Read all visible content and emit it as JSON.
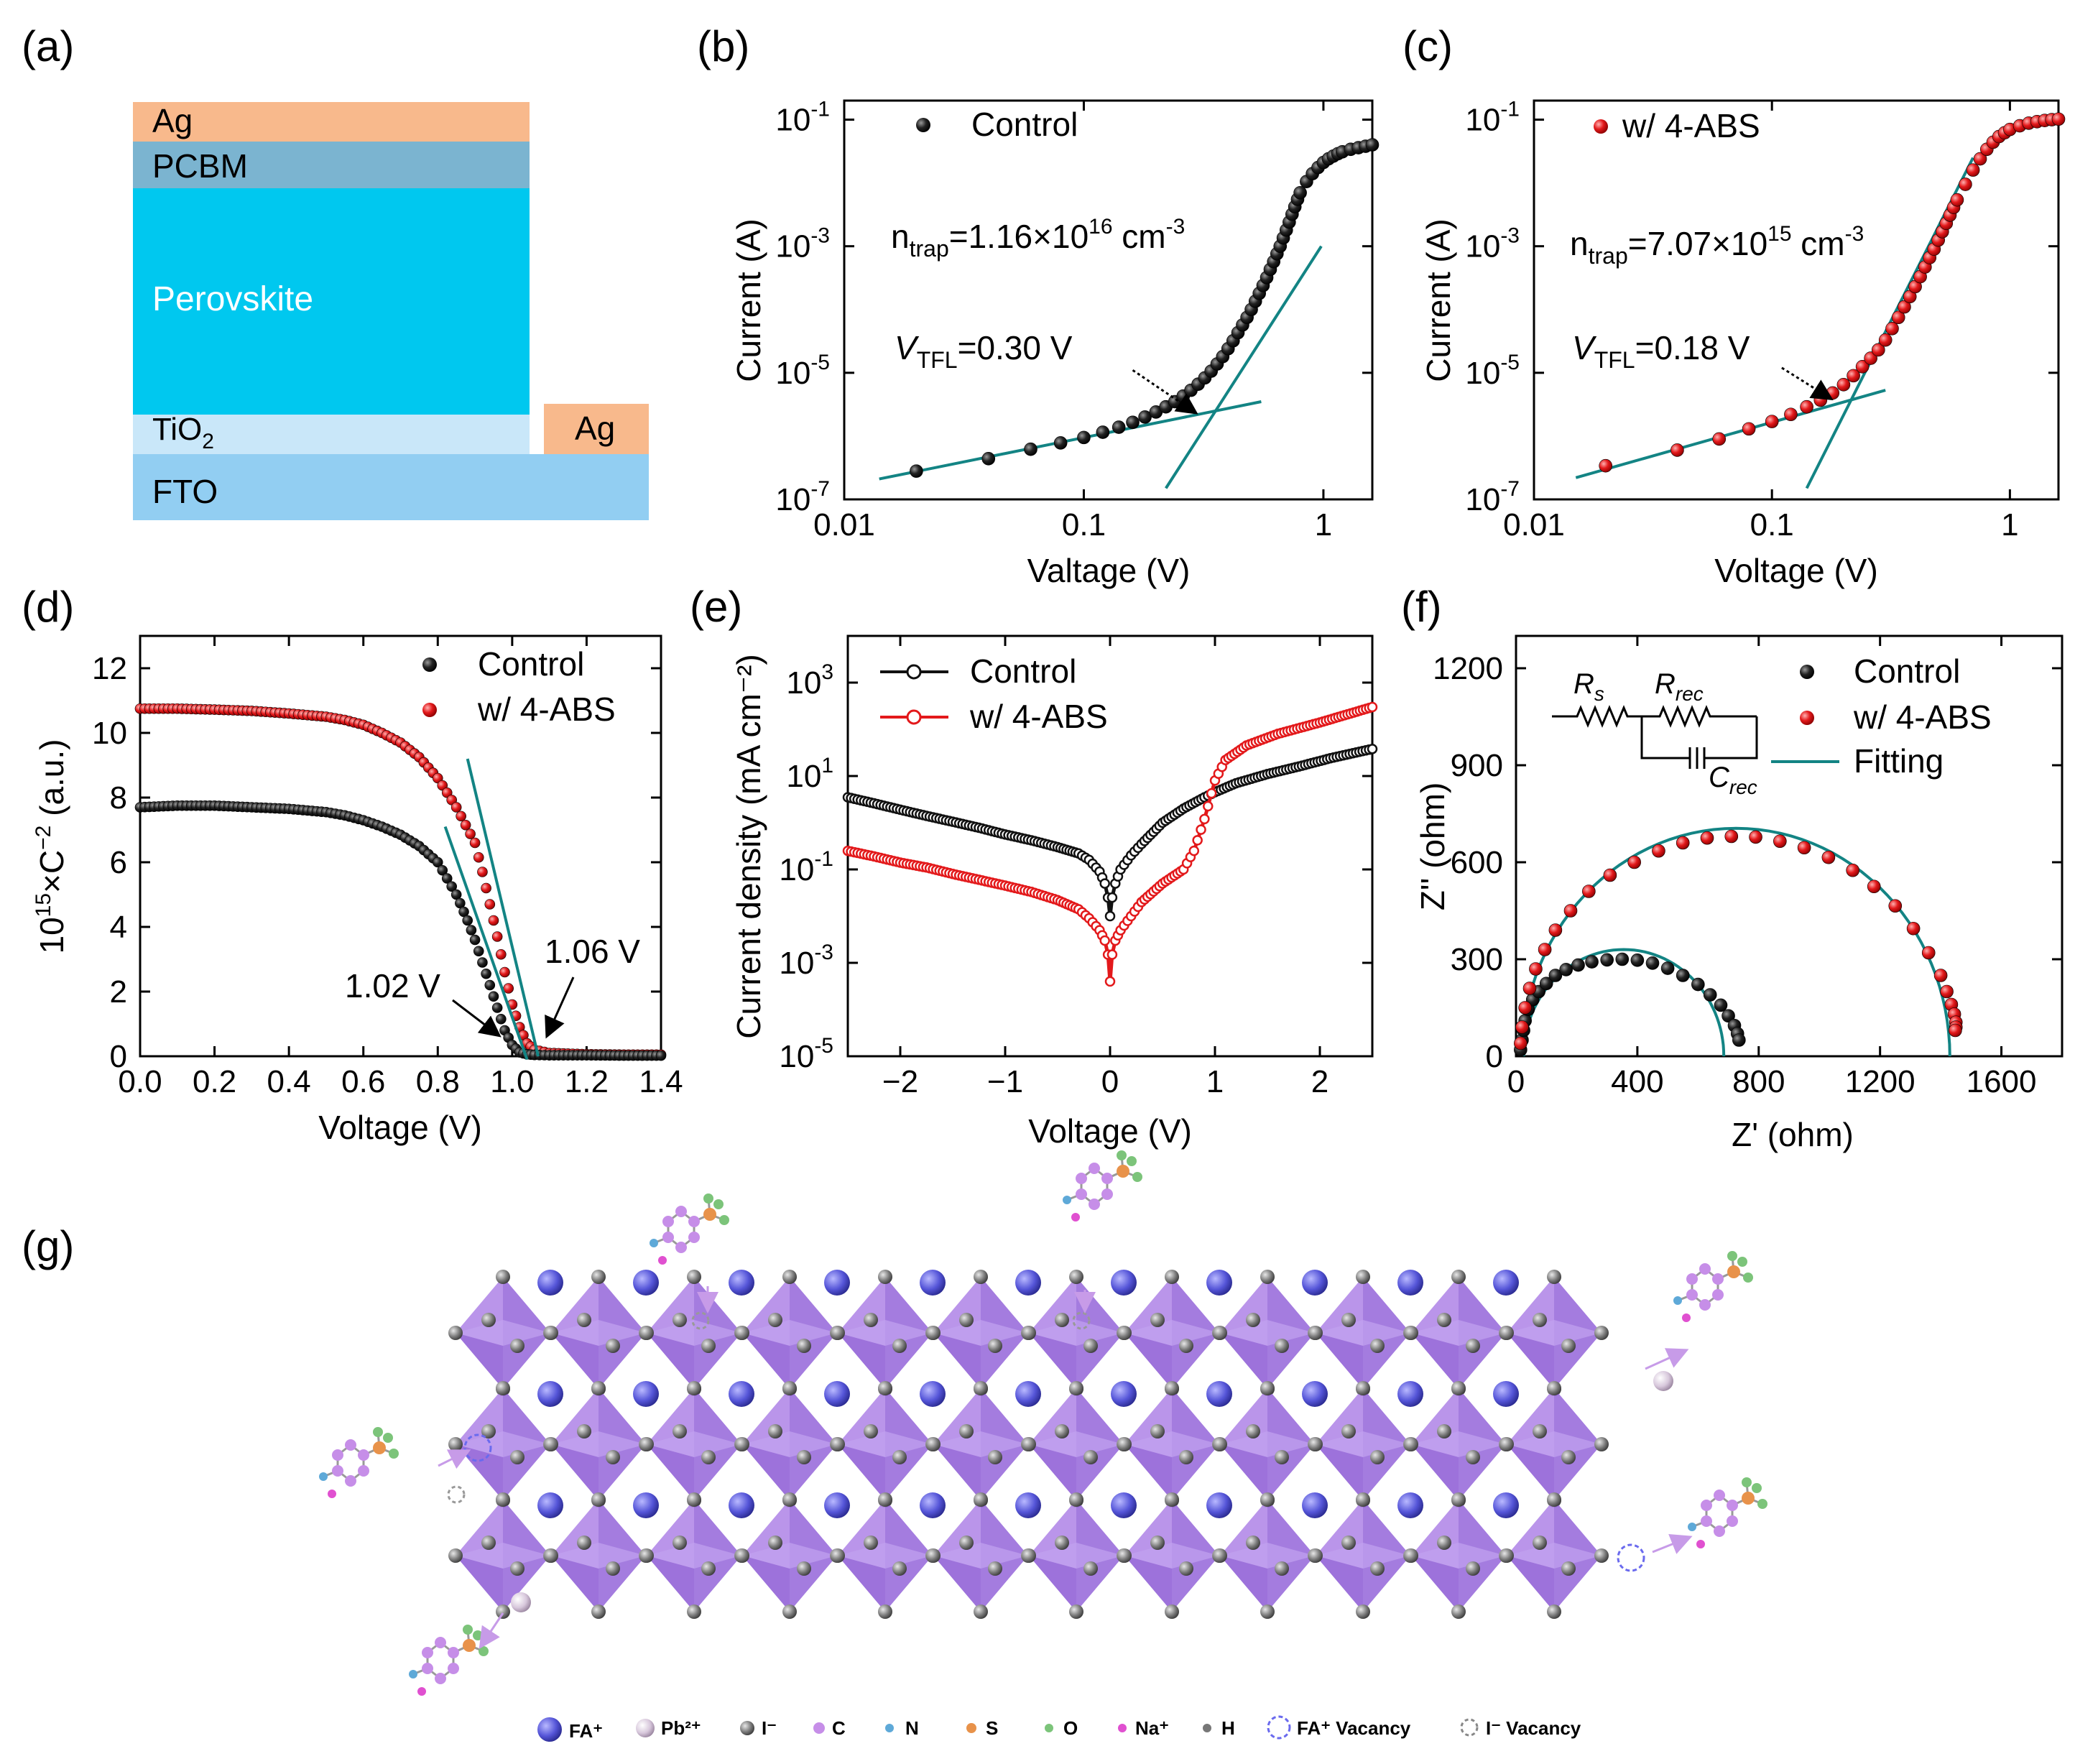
{
  "panel_labels": [
    "(a)",
    "(b)",
    "(c)",
    "(d)",
    "(e)",
    "(f)",
    "(g)"
  ],
  "colors": {
    "control": "#111111",
    "abs": "#e3191b",
    "fit": "#138484",
    "ag": "#f8b98c",
    "pcbm": "#7bb4d0",
    "perovskite": "#00c8ef",
    "tio2": "#c9e7f9",
    "fto": "#92cef2",
    "octahedron": "#9d6ee0",
    "fa": "#5b5bd6"
  },
  "device_stack": {
    "layers": [
      {
        "name": "Ag",
        "sub": ""
      },
      {
        "name": "PCBM",
        "sub": ""
      },
      {
        "name": "Perovskite",
        "sub": ""
      },
      {
        "name": "TiO",
        "sub": "2"
      },
      {
        "name": "FTO",
        "sub": ""
      }
    ],
    "side_electrode": "Ag"
  },
  "chart_data": [
    {
      "panel": "b",
      "type": "scatter",
      "xscale": "log",
      "yscale": "log",
      "xlabel": "Valtage (V)",
      "ylabel": "Current (A)",
      "xlim": [
        0.01,
        1.6
      ],
      "ylim": [
        1e-07,
        0.2
      ],
      "xtick_labels": [
        "0.01",
        "0.1",
        "1"
      ],
      "ytick_labels": [
        {
          "base": "10",
          "exp": "-7"
        },
        {
          "base": "10",
          "exp": "-5"
        },
        {
          "base": "10",
          "exp": "-3"
        },
        {
          "base": "10",
          "exp": "-1"
        }
      ],
      "legend": [
        "Control"
      ],
      "annotation_ntrap": {
        "main": "n",
        "sub": "trap",
        "value": "=1.16×10",
        "exp": "16",
        "unit": " cm",
        "unit_exp": "-3"
      },
      "annotation_vtfl": {
        "main": "V",
        "sub": "TFL",
        "value": "=0.30 V"
      },
      "series": [
        {
          "name": "Control",
          "x": [
            0.02,
            0.04,
            0.06,
            0.08,
            0.1,
            0.12,
            0.14,
            0.16,
            0.18,
            0.2,
            0.22,
            0.24,
            0.26,
            0.28,
            0.3,
            0.32,
            0.34,
            0.36,
            0.38,
            0.4,
            0.42,
            0.44,
            0.46,
            0.48,
            0.5,
            0.52,
            0.54,
            0.56,
            0.58,
            0.6,
            0.62,
            0.64,
            0.66,
            0.68,
            0.7,
            0.72,
            0.74,
            0.76,
            0.78,
            0.8,
            0.85,
            0.9,
            0.95,
            1.0,
            1.05,
            1.1,
            1.15,
            1.2,
            1.3,
            1.4,
            1.5,
            1.6
          ],
          "y": [
            2.8e-07,
            4.4e-07,
            6.2e-07,
            7.8e-07,
            9.5e-07,
            1.15e-06,
            1.38e-06,
            1.65e-06,
            2e-06,
            2.4e-06,
            2.9e-06,
            3.5e-06,
            4.3e-06,
            5.3e-06,
            6.6e-06,
            8.3e-06,
            1.06e-05,
            1.38e-05,
            1.8e-05,
            2.4e-05,
            3.2e-05,
            4.3e-05,
            5.7e-05,
            7.5e-05,
            0.0001,
            0.000135,
            0.00018,
            0.00024,
            0.00032,
            0.00043,
            0.00057,
            0.00076,
            0.001,
            0.00135,
            0.0018,
            0.0024,
            0.0032,
            0.0042,
            0.0055,
            0.007,
            0.0105,
            0.014,
            0.0175,
            0.021,
            0.024,
            0.0265,
            0.029,
            0.031,
            0.034,
            0.036,
            0.038,
            0.04
          ]
        }
      ],
      "fit_lines": [
        {
          "x": [
            0.014,
            0.55
          ],
          "y": [
            2.1e-07,
            3.5e-06
          ]
        },
        {
          "x": [
            0.22,
            0.98
          ],
          "y": [
            1.5e-07,
            0.001
          ]
        }
      ],
      "arrow": {
        "x": [
          0.16,
          0.29
        ],
        "y": [
          1.1e-05,
          2.4e-06
        ]
      }
    },
    {
      "panel": "c",
      "type": "scatter",
      "xscale": "log",
      "yscale": "log",
      "xlabel": "Voltage (V)",
      "ylabel": "Current (A)",
      "xlim": [
        0.01,
        1.6
      ],
      "ylim": [
        1e-07,
        0.2
      ],
      "xtick_labels": [
        "0.01",
        "0.1",
        "1"
      ],
      "ytick_labels": [
        {
          "base": "10",
          "exp": "-7"
        },
        {
          "base": "10",
          "exp": "-5"
        },
        {
          "base": "10",
          "exp": "-3"
        },
        {
          "base": "10",
          "exp": "-1"
        }
      ],
      "legend": [
        "w/ 4-ABS"
      ],
      "annotation_ntrap": {
        "main": "n",
        "sub": "trap",
        "value": "=7.07×10",
        "exp": "15",
        "unit": " cm",
        "unit_exp": "-3"
      },
      "annotation_vtfl": {
        "main": "V",
        "sub": "TFL",
        "value": "=0.18 V"
      },
      "series": [
        {
          "name": "w/ 4-ABS",
          "x": [
            0.02,
            0.04,
            0.06,
            0.08,
            0.1,
            0.12,
            0.14,
            0.16,
            0.18,
            0.2,
            0.22,
            0.24,
            0.26,
            0.28,
            0.3,
            0.32,
            0.34,
            0.36,
            0.38,
            0.4,
            0.42,
            0.44,
            0.46,
            0.48,
            0.5,
            0.52,
            0.54,
            0.56,
            0.58,
            0.6,
            0.65,
            0.7,
            0.75,
            0.8,
            0.85,
            0.9,
            0.95,
            1.0,
            1.1,
            1.2,
            1.3,
            1.4,
            1.5,
            1.6
          ],
          "y": [
            3.4e-07,
            6e-07,
            9e-07,
            1.3e-06,
            1.7e-06,
            2.2e-06,
            2.9e-06,
            3.7e-06,
            4.8e-06,
            6.5e-06,
            9e-06,
            1.25e-05,
            1.7e-05,
            2.3e-05,
            3.3e-05,
            5e-05,
            7.5e-05,
            0.00011,
            0.00016,
            0.00023,
            0.00033,
            0.00047,
            0.00066,
            0.0009,
            0.00125,
            0.0017,
            0.0023,
            0.0031,
            0.0041,
            0.0054,
            0.0095,
            0.016,
            0.024,
            0.034,
            0.044,
            0.054,
            0.062,
            0.07,
            0.08,
            0.088,
            0.093,
            0.097,
            0.1,
            0.102
          ]
        }
      ],
      "fit_lines": [
        {
          "x": [
            0.015,
            0.3
          ],
          "y": [
            2.2e-07,
            5.3e-06
          ]
        },
        {
          "x": [
            0.14,
            0.7
          ],
          "y": [
            1.5e-07,
            0.025
          ]
        }
      ],
      "arrow": {
        "x": [
          0.11,
          0.175
        ],
        "y": [
          1.2e-05,
          4e-06
        ]
      }
    },
    {
      "panel": "d",
      "type": "scatter",
      "xlabel": "Voltage (V)",
      "ylabel": {
        "pre": "10",
        "exp": "15",
        "mid": "×C",
        "exp2": "−2",
        "post": " (a.u.)"
      },
      "xlim": [
        0.0,
        1.4
      ],
      "ylim": [
        0,
        13
      ],
      "xticks": [
        0.0,
        0.2,
        0.4,
        0.6,
        0.8,
        1.0,
        1.2,
        1.4
      ],
      "xtick_labels": [
        "0.0",
        "0.2",
        "0.4",
        "0.6",
        "0.8",
        "1.0",
        "1.2",
        "1.4"
      ],
      "yticks": [
        0,
        2,
        4,
        6,
        8,
        10,
        12
      ],
      "ytick_labels": [
        "0",
        "2",
        "4",
        "6",
        "8",
        "10",
        "12"
      ],
      "legend": [
        "Control",
        "w/ 4-ABS"
      ],
      "annotations": [
        "1.02 V",
        "1.06 V"
      ],
      "series": [
        {
          "name": "Control",
          "x": [
            0.0,
            0.1,
            0.2,
            0.3,
            0.4,
            0.5,
            0.55,
            0.6,
            0.65,
            0.7,
            0.75,
            0.8,
            0.85,
            0.88,
            0.9,
            0.92,
            0.94,
            0.96,
            0.98,
            1.0,
            1.02,
            1.04,
            1.06,
            1.1,
            1.2,
            1.3,
            1.4
          ],
          "y": [
            7.7,
            7.75,
            7.75,
            7.7,
            7.65,
            7.55,
            7.45,
            7.3,
            7.1,
            6.85,
            6.5,
            6.0,
            5.0,
            4.2,
            3.6,
            2.9,
            2.2,
            1.5,
            0.8,
            0.35,
            0.12,
            0.06,
            0.04,
            0.03,
            0.03,
            0.02,
            0.02
          ]
        },
        {
          "name": "w/ 4-ABS",
          "x": [
            0.0,
            0.1,
            0.2,
            0.3,
            0.4,
            0.5,
            0.55,
            0.6,
            0.65,
            0.7,
            0.75,
            0.8,
            0.85,
            0.9,
            0.92,
            0.94,
            0.96,
            0.98,
            1.0,
            1.02,
            1.04,
            1.06,
            1.1,
            1.2,
            1.3,
            1.4
          ],
          "y": [
            10.75,
            10.75,
            10.72,
            10.68,
            10.6,
            10.5,
            10.4,
            10.25,
            10.0,
            9.7,
            9.25,
            8.6,
            7.7,
            6.6,
            5.7,
            4.7,
            3.7,
            2.6,
            1.6,
            0.9,
            0.4,
            0.2,
            0.1,
            0.06,
            0.05,
            0.05
          ]
        }
      ],
      "fit_lines": [
        {
          "x": [
            0.82,
            1.04
          ],
          "y": [
            7.1,
            -0.1
          ]
        },
        {
          "x": [
            0.88,
            1.07
          ],
          "y": [
            9.2,
            0.0
          ]
        }
      ]
    },
    {
      "panel": "e",
      "type": "line",
      "yscale": "log",
      "xlabel": "Voltage (V)",
      "ylabel": "Current density (mA cm⁻²)",
      "xlim": [
        -2.5,
        2.5
      ],
      "ylim": [
        1e-05,
        10000.0
      ],
      "xticks": [
        -2,
        -1,
        0,
        1,
        2
      ],
      "xtick_labels": [
        "−2",
        "−1",
        "0",
        "1",
        "2"
      ],
      "ytick_labels": [
        {
          "base": "10",
          "exp": "-5"
        },
        {
          "base": "10",
          "exp": "-3"
        },
        {
          "base": "10",
          "exp": "-1"
        },
        {
          "base": "10",
          "exp": "1"
        },
        {
          "base": "10",
          "exp": "3"
        }
      ],
      "legend": [
        "Control",
        "w/ 4-ABS"
      ],
      "series": [
        {
          "name": "Control",
          "x": [
            -2.5,
            -2.25,
            -2.0,
            -1.75,
            -1.5,
            -1.25,
            -1.0,
            -0.75,
            -0.5,
            -0.3,
            -0.2,
            -0.1,
            -0.05,
            -0.02,
            0.0,
            0.02,
            0.05,
            0.1,
            0.2,
            0.3,
            0.5,
            0.7,
            0.9,
            1.0,
            1.2,
            1.5,
            1.8,
            2.1,
            2.5
          ],
          "y": [
            3.5,
            2.6,
            1.9,
            1.4,
            1.05,
            0.78,
            0.56,
            0.42,
            0.3,
            0.22,
            0.16,
            0.09,
            0.05,
            0.025,
            0.01,
            0.025,
            0.05,
            0.1,
            0.2,
            0.35,
            1.0,
            2.0,
            3.5,
            4.5,
            7.0,
            11.0,
            16.0,
            24.0,
            38.0
          ]
        },
        {
          "name": "w/ 4-ABS",
          "x": [
            -2.5,
            -2.25,
            -2.0,
            -1.75,
            -1.5,
            -1.25,
            -1.0,
            -0.75,
            -0.5,
            -0.3,
            -0.2,
            -0.1,
            -0.05,
            -0.02,
            0.0,
            0.02,
            0.05,
            0.1,
            0.2,
            0.3,
            0.5,
            0.7,
            0.8,
            0.9,
            1.0,
            1.1,
            1.3,
            1.6,
            2.0,
            2.5
          ],
          "y": [
            0.25,
            0.19,
            0.14,
            0.11,
            0.08,
            0.06,
            0.045,
            0.033,
            0.022,
            0.014,
            0.009,
            0.005,
            0.003,
            0.0015,
            0.0004,
            0.0015,
            0.003,
            0.005,
            0.01,
            0.02,
            0.05,
            0.1,
            0.25,
            1.2,
            8.0,
            22.0,
            45.0,
            80.0,
            140.0,
            300.0
          ]
        }
      ]
    },
    {
      "panel": "f",
      "type": "scatter",
      "xlabel": "Z' (ohm)",
      "ylabel": "Z'' (ohm)",
      "xlim": [
        0,
        1800
      ],
      "ylim": [
        0,
        1300
      ],
      "xticks": [
        0,
        400,
        800,
        1200,
        1600
      ],
      "xtick_labels": [
        "0",
        "400",
        "800",
        "1200",
        "1600"
      ],
      "yticks": [
        0,
        300,
        600,
        900,
        1200
      ],
      "ytick_labels": [
        "0",
        "300",
        "600",
        "900",
        "1200"
      ],
      "legend": [
        "Control",
        "w/ 4-ABS",
        "Fitting"
      ],
      "circuit_labels": {
        "rs": "R",
        "rs_sub": "s",
        "rrec": "R",
        "rrec_sub": "rec",
        "crec": "C",
        "crec_sub": "rec"
      },
      "series": [
        {
          "name": "Control",
          "x": [
            15,
            20,
            25,
            30,
            40,
            55,
            75,
            100,
            130,
            165,
            205,
            250,
            300,
            350,
            400,
            450,
            500,
            550,
            600,
            640,
            675,
            700,
            720,
            730,
            735
          ],
          "y": [
            20,
            50,
            80,
            110,
            145,
            175,
            200,
            225,
            250,
            268,
            282,
            292,
            298,
            300,
            297,
            288,
            272,
            250,
            222,
            190,
            158,
            125,
            95,
            70,
            50
          ]
        },
        {
          "name": "w/ 4-ABS",
          "x": [
            15,
            20,
            30,
            45,
            65,
            95,
            130,
            180,
            240,
            310,
            390,
            470,
            550,
            630,
            710,
            790,
            870,
            950,
            1030,
            1110,
            1180,
            1250,
            1310,
            1360,
            1400,
            1420,
            1435,
            1445,
            1450,
            1450,
            1448
          ],
          "y": [
            40,
            90,
            150,
            210,
            270,
            330,
            390,
            450,
            510,
            560,
            600,
            635,
            660,
            675,
            680,
            678,
            665,
            645,
            615,
            575,
            525,
            465,
            395,
            320,
            250,
            200,
            160,
            130,
            105,
            90,
            80
          ]
        }
      ],
      "fits": [
        {
          "name": "Control fit",
          "x0": 25,
          "x1": 685,
          "r": 330
        },
        {
          "name": "w/ 4-ABS fit",
          "x0": 20,
          "x1": 1430,
          "r": 705
        }
      ]
    }
  ],
  "schematic_legend": [
    {
      "icon": "fa-sphere",
      "label": "FA⁺"
    },
    {
      "icon": "pb-sphere",
      "label": "Pb²⁺"
    },
    {
      "icon": "i-sphere",
      "label": "I⁻"
    },
    {
      "icon": "c-sphere",
      "label": "C"
    },
    {
      "icon": "n-sphere",
      "label": "N"
    },
    {
      "icon": "s-sphere",
      "label": "S"
    },
    {
      "icon": "o-sphere",
      "label": "O"
    },
    {
      "icon": "na-sphere",
      "label": "Na⁺"
    },
    {
      "icon": "h-sphere",
      "label": "H"
    },
    {
      "icon": "fa-vacancy-circle",
      "label": "FA⁺ Vacancy"
    },
    {
      "icon": "i-vacancy-circle",
      "label": "I⁻ Vacancy"
    }
  ]
}
